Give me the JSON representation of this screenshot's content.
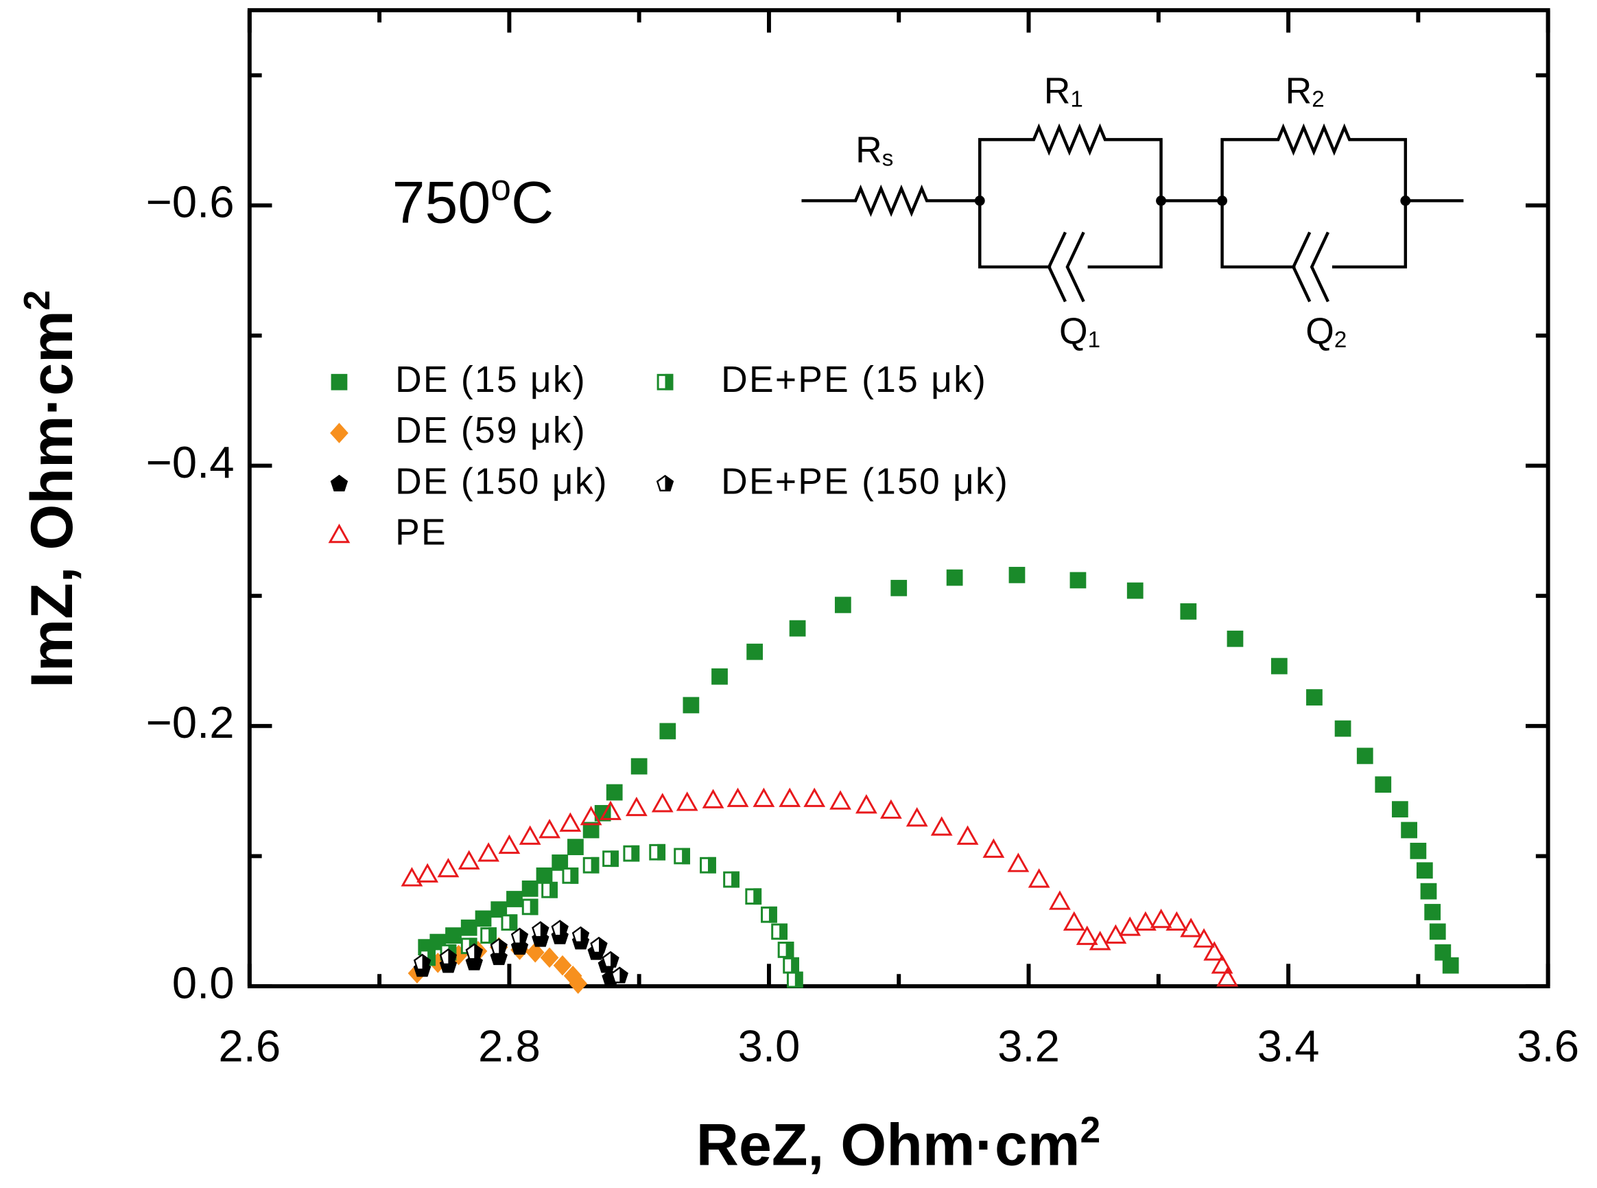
{
  "chart_data": {
    "type": "scatter",
    "annotation": {
      "text": "750",
      "sup": "o",
      "after": "C"
    },
    "circuit_labels": [
      {
        "main": "R",
        "sub": "s"
      },
      {
        "main": "R",
        "sub": "1"
      },
      {
        "main": "R",
        "sub": "2"
      },
      {
        "main": "Q",
        "sub": "1"
      },
      {
        "main": "Q",
        "sub": "2"
      }
    ],
    "xlabel": {
      "text": "ReZ, Ohm·cm",
      "sup": "2"
    },
    "ylabel": {
      "text": "ImZ, Ohm·cm",
      "sup": "2"
    },
    "xlim": [
      2.6,
      3.6
    ],
    "ylim": [
      0,
      -0.75
    ],
    "xticks": [
      {
        "value": 2.6,
        "label": "2.6"
      },
      {
        "value": 2.8,
        "label": "2.8"
      },
      {
        "value": 3,
        "label": "3.0"
      },
      {
        "value": 3.2,
        "label": "3.2"
      },
      {
        "value": 3.4,
        "label": "3.4"
      },
      {
        "value": 3.6,
        "label": "3.6"
      }
    ],
    "xminorticks": [
      2.7,
      2.9,
      3.1,
      3.3,
      3.5
    ],
    "yticks": [
      {
        "value": 0,
        "label": "0.0"
      },
      {
        "value": -0.2,
        "label": "−0.2"
      },
      {
        "value": -0.4,
        "label": "−0.4"
      },
      {
        "value": -0.6,
        "label": "−0.6"
      }
    ],
    "yminorticks": [
      -0.1,
      -0.3,
      -0.5,
      -0.7
    ],
    "legend": "upper left",
    "series": [
      {
        "name": "DE (15 μk)",
        "color": "#1a8a2a",
        "marker": "square",
        "x": [
          2.736,
          2.745,
          2.757,
          2.769,
          2.78,
          2.792,
          2.804,
          2.816,
          2.827,
          2.839,
          2.851,
          2.863,
          2.872,
          2.881,
          2.9,
          2.922,
          2.94,
          2.962,
          2.989,
          3.022,
          3.057,
          3.1,
          3.143,
          3.191,
          3.238,
          3.282,
          3.323,
          3.359,
          3.393,
          3.42,
          3.442,
          3.459,
          3.473,
          3.486,
          3.493,
          3.5,
          3.505,
          3.508,
          3.511,
          3.515,
          3.519,
          3.525
        ],
        "values": [
          -0.03,
          -0.034,
          -0.039,
          -0.045,
          -0.052,
          -0.059,
          -0.067,
          -0.075,
          -0.085,
          -0.095,
          -0.107,
          -0.12,
          -0.133,
          -0.149,
          -0.169,
          -0.196,
          -0.216,
          -0.238,
          -0.257,
          -0.275,
          -0.293,
          -0.306,
          -0.314,
          -0.316,
          -0.312,
          -0.304,
          -0.288,
          -0.267,
          -0.246,
          -0.222,
          -0.198,
          -0.177,
          -0.155,
          -0.136,
          -0.12,
          -0.104,
          -0.089,
          -0.073,
          -0.057,
          -0.042,
          -0.026,
          -0.016
        ]
      },
      {
        "name": "DE (59 μk)",
        "color": "#f7901e",
        "marker": "diamond",
        "x": [
          2.729,
          2.745,
          2.761,
          2.776,
          2.792,
          2.808,
          2.82,
          2.831,
          2.841,
          2.849,
          2.853
        ],
        "values": [
          -0.01,
          -0.018,
          -0.024,
          -0.027,
          -0.03,
          -0.028,
          -0.026,
          -0.022,
          -0.016,
          -0.008,
          -0.002
        ]
      },
      {
        "name": "DE (150 μk)",
        "color": "#000000",
        "marker": "pentagon",
        "x": [
          2.733,
          2.753,
          2.773,
          2.792,
          2.808,
          2.824,
          2.839,
          2.855,
          2.867,
          2.875,
          2.878
        ],
        "values": [
          -0.013,
          -0.016,
          -0.018,
          -0.022,
          -0.03,
          -0.036,
          -0.038,
          -0.034,
          -0.026,
          -0.016,
          -0.006
        ]
      },
      {
        "name": "PE",
        "color": "#e8191c",
        "marker": "triangle-open",
        "x": [
          2.725,
          2.737,
          2.753,
          2.769,
          2.784,
          2.8,
          2.816,
          2.831,
          2.847,
          2.863,
          2.878,
          2.898,
          2.918,
          2.937,
          2.957,
          2.976,
          2.996,
          3.016,
          3.035,
          3.055,
          3.075,
          3.094,
          3.114,
          3.133,
          3.153,
          3.173,
          3.192,
          3.208,
          3.224,
          3.235,
          3.245,
          3.255,
          3.267,
          3.278,
          3.29,
          3.302,
          3.314,
          3.325,
          3.335,
          3.343,
          3.349,
          3.353
        ],
        "values": [
          -0.083,
          -0.086,
          -0.09,
          -0.096,
          -0.102,
          -0.108,
          -0.115,
          -0.12,
          -0.125,
          -0.13,
          -0.134,
          -0.137,
          -0.14,
          -0.141,
          -0.143,
          -0.144,
          -0.144,
          -0.144,
          -0.144,
          -0.142,
          -0.139,
          -0.135,
          -0.129,
          -0.122,
          -0.115,
          -0.105,
          -0.094,
          -0.082,
          -0.065,
          -0.049,
          -0.038,
          -0.034,
          -0.039,
          -0.045,
          -0.049,
          -0.051,
          -0.049,
          -0.044,
          -0.036,
          -0.026,
          -0.016,
          -0.006
        ]
      },
      {
        "name": "DE+PE (15 μk)",
        "color": "#1a8a2a",
        "marker": "square-half",
        "x": [
          2.737,
          2.753,
          2.769,
          2.784,
          2.8,
          2.816,
          2.831,
          2.847,
          2.863,
          2.878,
          2.894,
          2.914,
          2.933,
          2.953,
          2.971,
          2.988,
          3.0,
          3.008,
          3.013,
          3.017,
          3.02
        ],
        "values": [
          -0.022,
          -0.026,
          -0.031,
          -0.039,
          -0.049,
          -0.061,
          -0.074,
          -0.085,
          -0.093,
          -0.098,
          -0.102,
          -0.103,
          -0.1,
          -0.093,
          -0.082,
          -0.069,
          -0.055,
          -0.042,
          -0.028,
          -0.016,
          -0.005
        ]
      },
      {
        "name": "DE+PE (150 μk)",
        "color": "#000000",
        "marker": "pentagon-half",
        "x": [
          2.733,
          2.753,
          2.773,
          2.792,
          2.808,
          2.824,
          2.839,
          2.855,
          2.869,
          2.878,
          2.885
        ],
        "values": [
          -0.018,
          -0.022,
          -0.026,
          -0.03,
          -0.038,
          -0.043,
          -0.044,
          -0.039,
          -0.031,
          -0.02,
          -0.008
        ]
      }
    ]
  }
}
